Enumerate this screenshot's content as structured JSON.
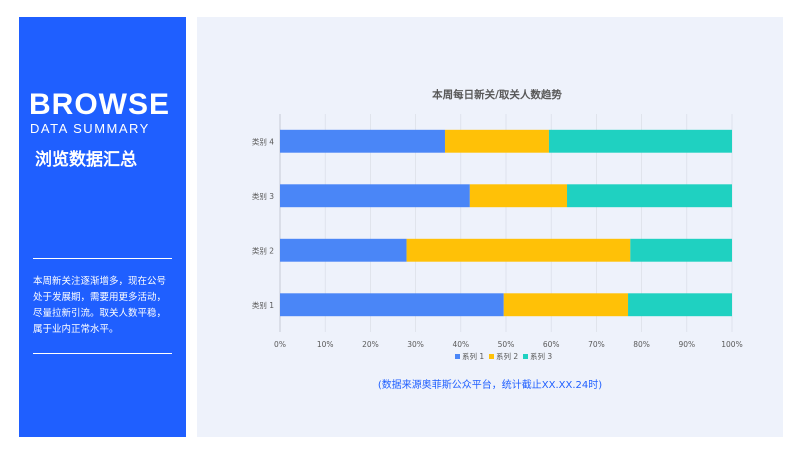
{
  "sidebar": {
    "heading": "BROWSE",
    "subheading": "DATA SUMMARY",
    "title_cn": "浏览数据汇总",
    "description": "本周新关注逐渐增多，现在公号处于发展期，需要用更多活动，尽量拉新引流。取关人数平稳，属于业内正常水平。"
  },
  "source_note": "(数据来源奥菲斯公众平台，统计截止XX.XX.24时)",
  "colors": {
    "sidebar_bg": "#1f5fff",
    "panel_bg": "#eef2fb",
    "series": [
      "#4a86f7",
      "#ffc107",
      "#1fd1c1"
    ]
  },
  "chart_data": {
    "type": "bar",
    "orientation": "horizontal",
    "stacking": "percent",
    "title": "本周每日新关/取关人数趋势",
    "categories": [
      "类别 1",
      "类别 2",
      "类别 3",
      "类别 4"
    ],
    "series": [
      {
        "name": "系列 1",
        "values": [
          49.5,
          28,
          42,
          36.5
        ]
      },
      {
        "name": "系列 2",
        "values": [
          27.5,
          49.5,
          21.5,
          23
        ]
      },
      {
        "name": "系列 3",
        "values": [
          23,
          22.5,
          36.5,
          40.5
        ]
      }
    ],
    "xlim": [
      0,
      100
    ],
    "x_ticks": [
      "0%",
      "10%",
      "20%",
      "30%",
      "40%",
      "50%",
      "60%",
      "70%",
      "80%",
      "90%",
      "100%"
    ],
    "grid": true,
    "legend_position": "bottom"
  }
}
